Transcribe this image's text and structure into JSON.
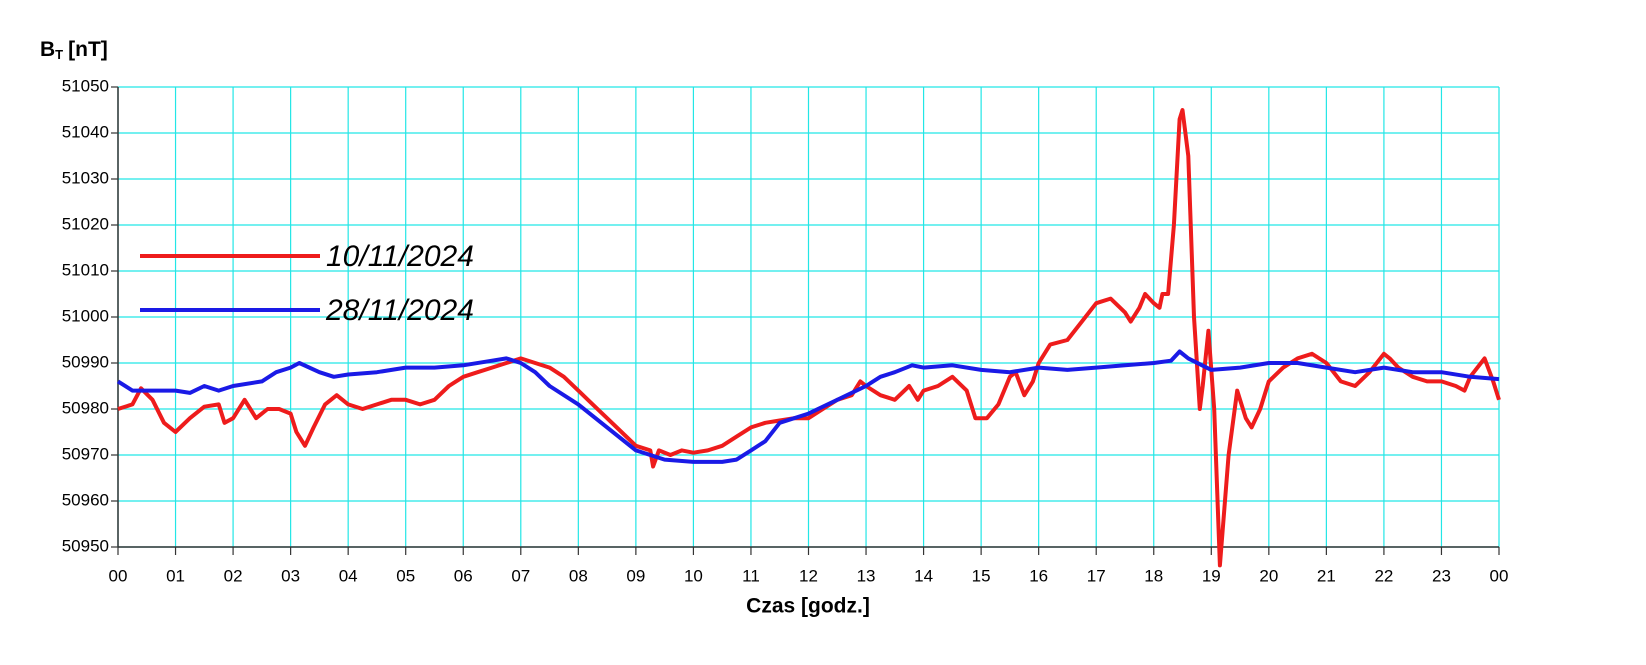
{
  "chart_data": {
    "type": "line",
    "y_label": {
      "main": "B",
      "sub": "T",
      "unit": "[nT]"
    },
    "x_label": "Czas [godz.]",
    "xlim": [
      0,
      24
    ],
    "xticks": [
      {
        "value": 0,
        "label": "00"
      },
      {
        "value": 1,
        "label": "01"
      },
      {
        "value": 2,
        "label": "02"
      },
      {
        "value": 3,
        "label": "03"
      },
      {
        "value": 4,
        "label": "04"
      },
      {
        "value": 5,
        "label": "05"
      },
      {
        "value": 6,
        "label": "06"
      },
      {
        "value": 7,
        "label": "07"
      },
      {
        "value": 8,
        "label": "08"
      },
      {
        "value": 9,
        "label": "09"
      },
      {
        "value": 10,
        "label": "10"
      },
      {
        "value": 11,
        "label": "11"
      },
      {
        "value": 12,
        "label": "12"
      },
      {
        "value": 13,
        "label": "13"
      },
      {
        "value": 14,
        "label": "14"
      },
      {
        "value": 15,
        "label": "15"
      },
      {
        "value": 16,
        "label": "16"
      },
      {
        "value": 17,
        "label": "17"
      },
      {
        "value": 18,
        "label": "18"
      },
      {
        "value": 19,
        "label": "19"
      },
      {
        "value": 20,
        "label": "20"
      },
      {
        "value": 21,
        "label": "21"
      },
      {
        "value": 22,
        "label": "22"
      },
      {
        "value": 23,
        "label": "23"
      },
      {
        "value": 24,
        "label": "00"
      }
    ],
    "ylim": [
      50950,
      51050
    ],
    "yticks": [
      50950,
      50960,
      50970,
      50980,
      50990,
      51000,
      51010,
      51020,
      51030,
      51040,
      51050
    ],
    "grid": true,
    "grid_color": "#22e6e6",
    "legend": "upper left",
    "series": [
      {
        "name": "10/11/2024",
        "color": "#ee1c1c",
        "x": [
          0,
          0.25,
          0.4,
          0.6,
          0.8,
          1.0,
          1.25,
          1.5,
          1.75,
          1.85,
          2.0,
          2.2,
          2.4,
          2.6,
          2.8,
          3.0,
          3.1,
          3.25,
          3.4,
          3.6,
          3.8,
          4.0,
          4.25,
          4.5,
          4.75,
          5.0,
          5.25,
          5.5,
          5.75,
          6.0,
          6.25,
          6.5,
          6.75,
          7.0,
          7.25,
          7.5,
          7.75,
          8.0,
          8.25,
          8.5,
          8.75,
          9.0,
          9.25,
          9.3,
          9.4,
          9.6,
          9.8,
          10.0,
          10.25,
          10.5,
          10.75,
          11.0,
          11.25,
          11.5,
          11.75,
          12.0,
          12.25,
          12.5,
          12.75,
          12.9,
          13.0,
          13.25,
          13.5,
          13.75,
          13.9,
          14.0,
          14.25,
          14.5,
          14.75,
          14.9,
          15.1,
          15.3,
          15.5,
          15.6,
          15.75,
          15.9,
          16.0,
          16.2,
          16.5,
          16.75,
          17.0,
          17.25,
          17.5,
          17.6,
          17.75,
          17.85,
          18.0,
          18.1,
          18.15,
          18.25,
          18.35,
          18.45,
          18.5,
          18.6,
          18.7,
          18.8,
          18.85,
          18.95,
          19.05,
          19.15,
          19.3,
          19.45,
          19.6,
          19.7,
          19.85,
          20.0,
          20.25,
          20.5,
          20.75,
          21.0,
          21.25,
          21.5,
          21.75,
          22.0,
          22.1,
          22.25,
          22.5,
          22.75,
          23.0,
          23.25,
          23.4,
          23.5,
          23.75,
          23.9,
          24.0
        ],
        "values": [
          50980,
          50981,
          50984.5,
          50982,
          50977,
          50975,
          50978,
          50980.5,
          50981,
          50977,
          50978,
          50982,
          50978,
          50980,
          50980,
          50979,
          50975,
          50972,
          50976,
          50981,
          50983,
          50981,
          50980,
          50981,
          50982,
          50982,
          50981,
          50982,
          50985,
          50987,
          50988,
          50989,
          50990,
          50991,
          50990,
          50989,
          50987,
          50984,
          50981,
          50978,
          50975,
          50972,
          50971,
          50967.5,
          50971,
          50970,
          50971,
          50970.5,
          50971,
          50972,
          50974,
          50976,
          50977,
          50977.5,
          50978,
          50978,
          50980,
          50982,
          50983,
          50986,
          50985,
          50983,
          50982,
          50985,
          50982,
          50984,
          50985,
          50987,
          50984,
          50978,
          50978,
          50981,
          50987,
          50988,
          50983,
          50986,
          50990,
          50994,
          50995,
          50999,
          51003,
          51004,
          51001,
          50999,
          51002,
          51005,
          51003,
          51002,
          51005,
          51005,
          51020,
          51043,
          51045,
          51035,
          51000,
          50980,
          50985,
          50997,
          50980,
          50946,
          50970,
          50984,
          50978,
          50976,
          50980,
          50986,
          50989,
          50991,
          50992,
          50990,
          50986,
          50985,
          50988,
          50992,
          50991,
          50989,
          50987,
          50986,
          50986,
          50985,
          50984,
          50987,
          50991,
          50986,
          50982
        ]
      },
      {
        "name": "28/11/2024",
        "color": "#1a1ae6",
        "x": [
          0,
          0.25,
          0.5,
          1.0,
          1.25,
          1.5,
          1.75,
          2.0,
          2.5,
          2.75,
          3.0,
          3.15,
          3.5,
          3.75,
          4.0,
          4.5,
          5.0,
          5.5,
          6.0,
          6.5,
          6.75,
          7.0,
          7.25,
          7.5,
          8.0,
          8.5,
          9.0,
          9.5,
          10.0,
          10.5,
          10.75,
          11.0,
          11.25,
          11.5,
          12.0,
          12.5,
          13.0,
          13.25,
          13.5,
          13.8,
          14.0,
          14.5,
          15.0,
          15.5,
          16.0,
          16.5,
          17.0,
          17.5,
          18.0,
          18.3,
          18.45,
          18.6,
          19.0,
          19.5,
          20.0,
          20.5,
          21.0,
          21.5,
          22.0,
          22.5,
          23.0,
          23.5,
          24.0
        ],
        "values": [
          50986,
          50984,
          50984,
          50984,
          50983.5,
          50985,
          50984,
          50985,
          50986,
          50988,
          50989,
          50990,
          50988,
          50987,
          50987.5,
          50988,
          50989,
          50989,
          50989.5,
          50990.5,
          50991,
          50990,
          50988,
          50985,
          50981,
          50976,
          50971,
          50969,
          50968.5,
          50968.5,
          50969,
          50971,
          50973,
          50977,
          50979,
          50982,
          50985,
          50987,
          50988,
          50989.5,
          50989,
          50989.5,
          50988.5,
          50988,
          50989,
          50988.5,
          50989,
          50989.5,
          50990,
          50990.5,
          50992.5,
          50991,
          50988.5,
          50989,
          50990,
          50990,
          50989,
          50988,
          50989,
          50988,
          50988,
          50987,
          50986.5
        ]
      }
    ]
  }
}
